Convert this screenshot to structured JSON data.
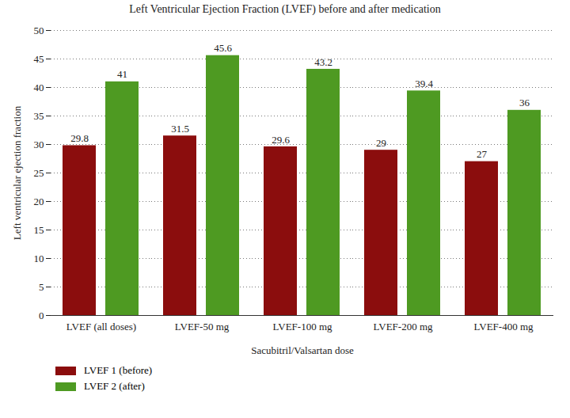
{
  "chart_data": {
    "type": "bar",
    "title": "Left Ventricular Ejection Fraction (LVEF) before and after medication",
    "x_label": "Sacubitril/Valsartan dose",
    "y_label": "Left ventricular ejection fraction",
    "categories": [
      "LVEF (all doses)",
      "LVEF-50 mg",
      "LVEF-100 mg",
      "LVEF-200 mg",
      "LVEF-400 mg"
    ],
    "series": [
      {
        "name": "LVEF 1 (before)",
        "color": "#8b0d0d",
        "values": [
          29.8,
          31.5,
          29.6,
          29,
          27
        ]
      },
      {
        "name": "LVEF 2 (after)",
        "color": "#4e9a22",
        "values": [
          41,
          45.6,
          43.2,
          39.4,
          36
        ]
      }
    ],
    "ylim": [
      0,
      50
    ],
    "yticks": [
      0,
      5,
      10,
      15,
      20,
      25,
      30,
      35,
      40,
      45,
      50
    ],
    "grid": true,
    "data_labels": true,
    "legend": "bottom-left"
  }
}
